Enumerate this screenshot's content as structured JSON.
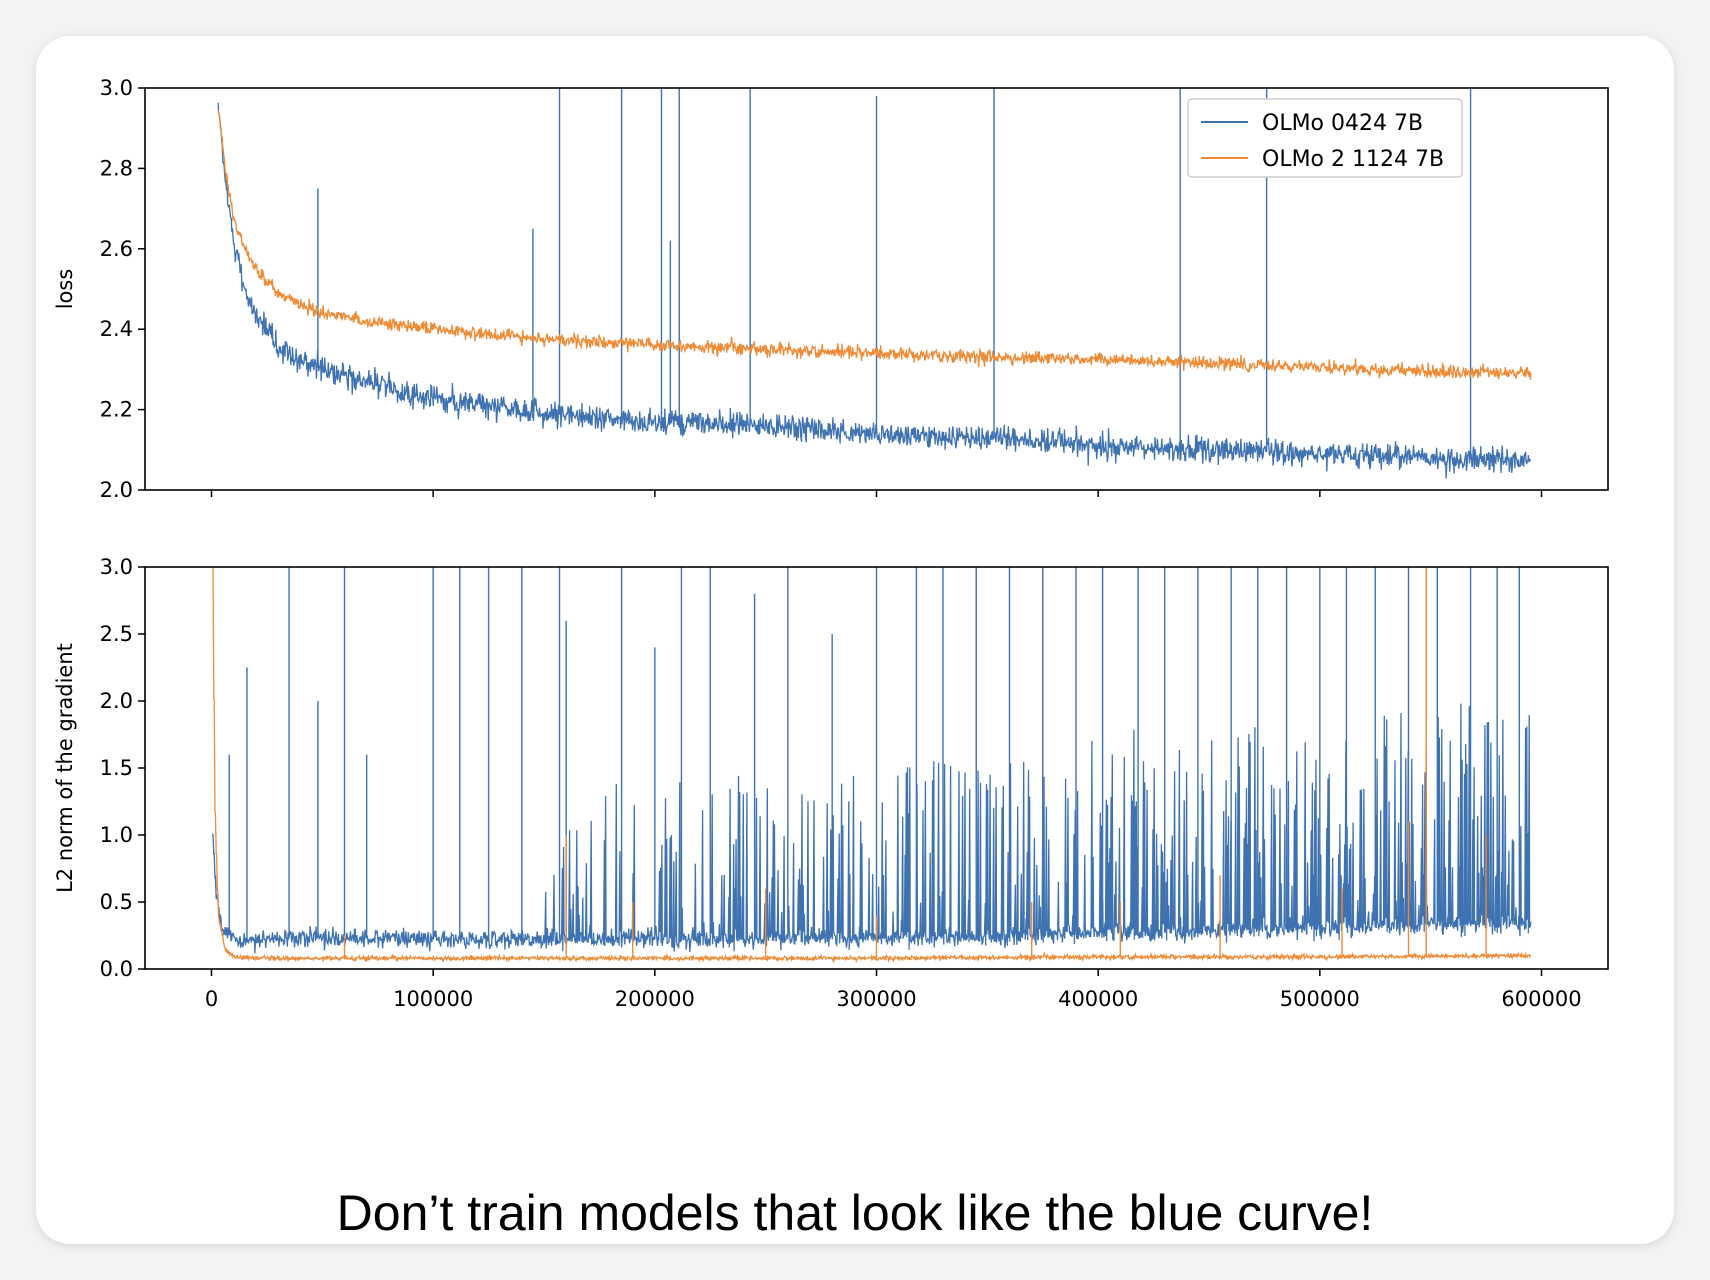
{
  "caption": "Don’t train models that look like the blue curve!",
  "chart_data": [
    {
      "type": "line",
      "ylabel": "loss",
      "xlabel": "",
      "xlim": [
        -30000,
        630000
      ],
      "ylim": [
        2.0,
        3.0
      ],
      "yticks": [
        2.0,
        2.2,
        2.4,
        2.6,
        2.8,
        3.0
      ],
      "ytick_labels": [
        "2.0",
        "2.2",
        "2.4",
        "2.6",
        "2.8",
        "3.0"
      ],
      "xticks": [
        0,
        100000,
        200000,
        300000,
        400000,
        500000,
        600000
      ],
      "show_xtick_labels": false,
      "legend": {
        "placement": "top-right"
      },
      "series": [
        {
          "name": "OLMo 0424 7B",
          "color": "#3e72b0",
          "x": [
            3000,
            6000,
            10000,
            15000,
            20000,
            30000,
            40000,
            50000,
            70000,
            100000,
            150000,
            200000,
            250000,
            300000,
            350000,
            400000,
            450000,
            500000,
            550000,
            595000
          ],
          "y": [
            2.95,
            2.78,
            2.62,
            2.5,
            2.43,
            2.36,
            2.32,
            2.3,
            2.27,
            2.23,
            2.19,
            2.17,
            2.16,
            2.14,
            2.13,
            2.11,
            2.1,
            2.09,
            2.08,
            2.07
          ],
          "noise": 0.028,
          "spikes": [
            [
              48000,
              2.75
            ],
            [
              145000,
              2.65
            ],
            [
              157000,
              3.0
            ],
            [
              185000,
              3.0
            ],
            [
              203000,
              3.0
            ],
            [
              207000,
              2.62
            ],
            [
              211000,
              3.0
            ],
            [
              243000,
              3.0
            ],
            [
              300000,
              2.98
            ],
            [
              353000,
              3.0
            ],
            [
              437000,
              3.0
            ],
            [
              476000,
              3.0
            ],
            [
              568000,
              3.0
            ]
          ]
        },
        {
          "name": "OLMo 2 1124 7B",
          "color": "#ef8a35",
          "x": [
            3000,
            6000,
            10000,
            15000,
            20000,
            30000,
            40000,
            50000,
            70000,
            100000,
            150000,
            200000,
            250000,
            300000,
            350000,
            400000,
            450000,
            500000,
            550000,
            595000
          ],
          "y": [
            2.95,
            2.8,
            2.67,
            2.6,
            2.55,
            2.49,
            2.46,
            2.44,
            2.42,
            2.4,
            2.375,
            2.36,
            2.35,
            2.34,
            2.33,
            2.325,
            2.315,
            2.305,
            2.295,
            2.29
          ],
          "noise": 0.015,
          "spikes": []
        }
      ]
    },
    {
      "type": "line",
      "ylabel": "L2 norm of the gradient",
      "xlabel": "",
      "xlim": [
        -30000,
        630000
      ],
      "ylim": [
        0.0,
        3.0
      ],
      "yticks": [
        0.0,
        0.5,
        1.0,
        1.5,
        2.0,
        2.5,
        3.0
      ],
      "ytick_labels": [
        "0.0",
        "0.5",
        "1.0",
        "1.5",
        "2.0",
        "2.5",
        "3.0"
      ],
      "xticks": [
        0,
        100000,
        200000,
        300000,
        400000,
        500000,
        600000
      ],
      "xtick_labels": [
        "0",
        "100000",
        "200000",
        "300000",
        "400000",
        "500000",
        "600000"
      ],
      "show_xtick_labels": true,
      "series": [
        {
          "name": "OLMo 0424 7B",
          "color": "#3e72b0",
          "x": [
            500,
            2000,
            5000,
            10000,
            20000,
            40000,
            60000,
            100000,
            150000,
            200000,
            250000,
            300000,
            350000,
            400000,
            450000,
            500000,
            550000,
            595000
          ],
          "y": [
            1.0,
            0.55,
            0.3,
            0.22,
            0.22,
            0.24,
            0.23,
            0.22,
            0.22,
            0.22,
            0.22,
            0.23,
            0.24,
            0.26,
            0.28,
            0.3,
            0.32,
            0.33
          ],
          "noise": 0.06,
          "spikes": [
            [
              8000,
              1.6
            ],
            [
              16000,
              2.25
            ],
            [
              35000,
              3.0
            ],
            [
              48000,
              2.0
            ],
            [
              60000,
              3.0
            ],
            [
              70000,
              1.6
            ],
            [
              100000,
              3.0
            ],
            [
              112000,
              3.0
            ],
            [
              125000,
              3.0
            ],
            [
              140000,
              3.0
            ],
            [
              157000,
              3.0
            ],
            [
              160000,
              2.6
            ],
            [
              185000,
              3.0
            ],
            [
              200000,
              2.4
            ],
            [
              212000,
              3.0
            ],
            [
              225000,
              3.0
            ],
            [
              245000,
              2.8
            ],
            [
              260000,
              3.0
            ],
            [
              280000,
              2.5
            ],
            [
              300000,
              3.0
            ],
            [
              318000,
              3.0
            ],
            [
              330000,
              3.0
            ],
            [
              345000,
              3.0
            ],
            [
              360000,
              3.0
            ],
            [
              375000,
              3.0
            ],
            [
              390000,
              3.0
            ],
            [
              402000,
              3.0
            ],
            [
              418000,
              3.0
            ],
            [
              430000,
              3.0
            ],
            [
              445000,
              3.0
            ],
            [
              460000,
              3.0
            ],
            [
              472000,
              3.0
            ],
            [
              485000,
              3.0
            ],
            [
              500000,
              3.0
            ],
            [
              512000,
              3.0
            ],
            [
              525000,
              3.0
            ],
            [
              540000,
              3.0
            ],
            [
              553000,
              3.0
            ],
            [
              568000,
              3.0
            ],
            [
              580000,
              3.0
            ],
            [
              590000,
              3.0
            ]
          ],
          "spike_band": [
            0.9,
            1.7
          ]
        },
        {
          "name": "OLMo 2 1124 7B",
          "color": "#ef8a35",
          "x": [
            500,
            1500,
            3000,
            6000,
            10000,
            20000,
            50000,
            100000,
            200000,
            300000,
            400000,
            500000,
            595000
          ],
          "y": [
            3.0,
            1.2,
            0.4,
            0.15,
            0.09,
            0.08,
            0.08,
            0.08,
            0.08,
            0.08,
            0.09,
            0.09,
            0.1
          ],
          "noise": 0.015,
          "spikes": [
            [
              60000,
              0.25
            ],
            [
              160000,
              1.0
            ],
            [
              190000,
              0.5
            ],
            [
              250000,
              0.6
            ],
            [
              300000,
              0.4
            ],
            [
              370000,
              0.5
            ],
            [
              410000,
              0.5
            ],
            [
              455000,
              0.7
            ],
            [
              510000,
              0.6
            ],
            [
              540000,
              1.1
            ],
            [
              548000,
              3.0
            ],
            [
              575000,
              1.0
            ]
          ]
        }
      ]
    }
  ]
}
